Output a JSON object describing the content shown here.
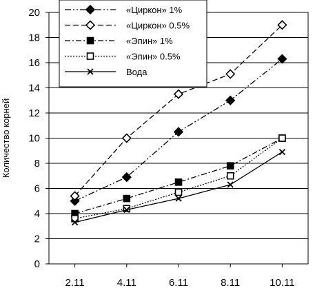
{
  "chart_data": {
    "type": "line",
    "title": "",
    "xlabel": "",
    "ylabel": "Количество корней",
    "ylim": [
      0,
      20
    ],
    "yticks": [
      "0",
      "2",
      "4",
      "6",
      "8",
      "10",
      "12",
      "14",
      "16",
      "18",
      "20"
    ],
    "categories": [
      "2.11",
      "4.11",
      "6.11",
      "8.11",
      "10.11"
    ],
    "grid": "horizontal",
    "legend_position": "top-left",
    "series": [
      {
        "name": "«Циркон» 1%",
        "values": [
          5.0,
          6.9,
          10.5,
          13.0,
          16.3
        ],
        "marker": "diamond-filled",
        "dash": "dash-dot-dot",
        "color": "#000000"
      },
      {
        "name": "«Циркон» 0.5%",
        "values": [
          5.4,
          10.0,
          13.5,
          15.1,
          19.0
        ],
        "marker": "diamond-open",
        "dash": "dash",
        "color": "#000000"
      },
      {
        "name": "«Эпин» 1%",
        "values": [
          4.0,
          5.2,
          6.5,
          7.8,
          10.0
        ],
        "marker": "square-filled",
        "dash": "dash-dot",
        "color": "#000000"
      },
      {
        "name": "«Эпин» 0.5%",
        "values": [
          3.6,
          4.4,
          5.7,
          7.0,
          10.0
        ],
        "marker": "square-open",
        "dash": "dot",
        "color": "#000000"
      },
      {
        "name": "Вода",
        "values": [
          3.3,
          4.3,
          5.2,
          6.3,
          8.9
        ],
        "marker": "x",
        "dash": "solid",
        "color": "#000000"
      }
    ]
  }
}
